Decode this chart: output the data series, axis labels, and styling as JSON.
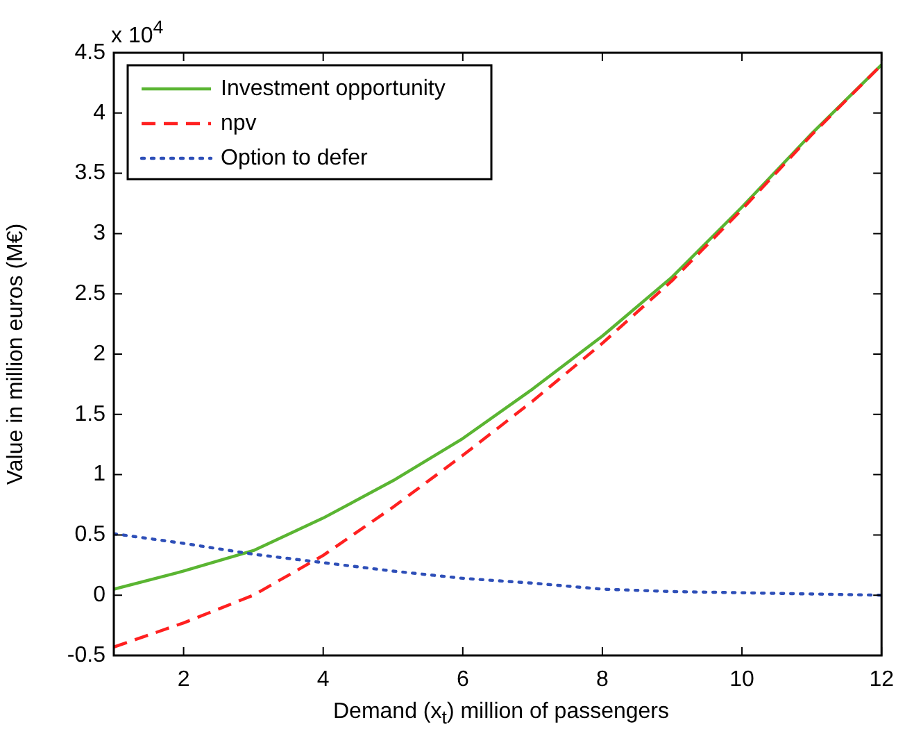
{
  "chart_data": {
    "type": "line",
    "xlabel": "Demand (x$_{t}$) million of passengers",
    "ylabel": "Value in million euros (M€)",
    "annotations": [
      "x 10$^{4}$"
    ],
    "x": [
      1,
      2,
      3,
      4,
      5,
      6,
      7,
      8,
      9,
      10,
      11,
      12
    ],
    "series": [
      {
        "name": "Investment opportunity",
        "color": "#5ab532",
        "line_style": "solid",
        "values": [
          0.05,
          0.2,
          0.37,
          0.64,
          0.95,
          1.3,
          1.71,
          2.15,
          2.64,
          3.22,
          3.83,
          4.4
        ]
      },
      {
        "name": "npv",
        "color": "#ff2020",
        "line_style": "dashed",
        "values": [
          -0.43,
          -0.23,
          0.0,
          0.33,
          0.73,
          1.16,
          1.61,
          2.09,
          2.61,
          3.2,
          3.82,
          4.4
        ]
      },
      {
        "name": "Option to defer",
        "color": "#2e4fb8",
        "line_style": "dotted",
        "values": [
          0.51,
          0.43,
          0.34,
          0.27,
          0.2,
          0.14,
          0.1,
          0.05,
          0.03,
          0.02,
          0.01,
          0.0
        ]
      }
    ],
    "xlim": [
      1,
      12
    ],
    "xticks": [
      2,
      4,
      6,
      8,
      10,
      12
    ],
    "ylim": [
      -0.5,
      4.5
    ],
    "yticks": [
      -0.5,
      0,
      0.5,
      1,
      1.5,
      2,
      2.5,
      3,
      3.5,
      4,
      4.5
    ],
    "grid": false,
    "legend": "top left",
    "marker": "none"
  }
}
